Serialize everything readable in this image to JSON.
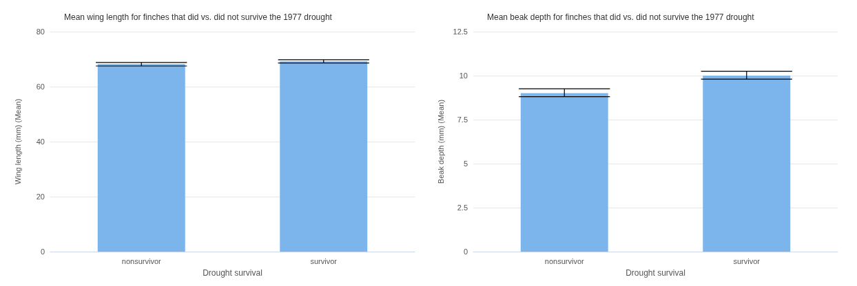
{
  "chart_data": [
    {
      "type": "bar",
      "title": "Mean wing length for finches that did vs. did not survive the 1977 drought",
      "xlabel": "Drought survival",
      "ylabel": "Wing length (mm) (Mean)",
      "categories": [
        "nonsurvivor",
        "survivor"
      ],
      "values": [
        68.2,
        69.2
      ],
      "errors": [
        [
          67.5,
          68.8
        ],
        [
          68.6,
          69.8
        ]
      ],
      "color": "#7cb4ec",
      "ylim": [
        0,
        80
      ],
      "yticks": [
        0,
        20,
        40,
        60,
        80
      ],
      "grid": "y"
    },
    {
      "type": "bar",
      "title": "Mean beak depth for finches that did vs. did not survive the 1977 drought",
      "xlabel": "Drought survival",
      "ylabel": "Beak depth (mm) (Mean)",
      "categories": [
        "nonsurvivor",
        "survivor"
      ],
      "values": [
        9.0,
        10.0
      ],
      "errors": [
        [
          8.8,
          9.25
        ],
        [
          9.8,
          10.25
        ]
      ],
      "color": "#7cb4ec",
      "ylim": [
        0,
        12.5
      ],
      "yticks": [
        0,
        2.5,
        5,
        7.5,
        10,
        12.5
      ],
      "grid": "y"
    }
  ]
}
